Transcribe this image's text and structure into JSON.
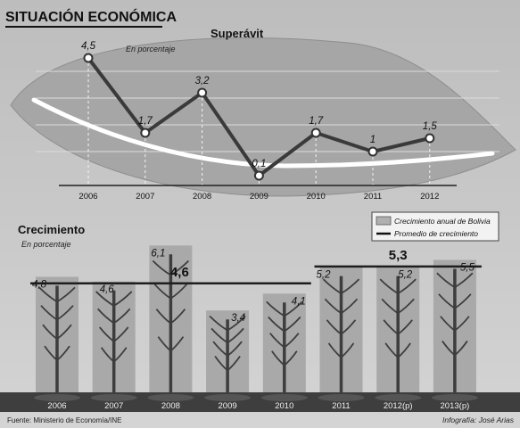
{
  "header": {
    "title": "SITUACIÓN ECONÓMICA"
  },
  "chart_data": [
    {
      "type": "line",
      "title": "Superávit",
      "subtitle": "En porcentaje",
      "x": [
        "2006",
        "2007",
        "2008",
        "2009",
        "2010",
        "2011",
        "2012"
      ],
      "series": [
        {
          "values": [
            4.5,
            1.7,
            3.2,
            0.1,
            1.7,
            1,
            1.5
          ]
        }
      ],
      "value_labels": [
        "4,5",
        "1,7",
        "3,2",
        "0,1",
        "1,7",
        "1",
        "1,5"
      ],
      "ylim": [
        0,
        5
      ],
      "grid": true,
      "trend_curve": true,
      "colors": {
        "line": "#3a3a3a",
        "marker": "#ffffff",
        "trend": "#ffffff",
        "leaf": "#a6a6a6"
      }
    },
    {
      "type": "bar",
      "title": "Crecimiento",
      "subtitle": "En porcentaje",
      "categories": [
        "2006",
        "2007",
        "2008",
        "2009",
        "2010",
        "2011",
        "2012(p)",
        "2013(p)"
      ],
      "series": [
        {
          "name": "Crecimiento anual de Bolivia",
          "values": [
            4.8,
            4.6,
            6.1,
            3.4,
            4.1,
            5.2,
            5.2,
            5.5
          ]
        }
      ],
      "value_labels": [
        "4,8",
        "4,6",
        "6,1",
        "3,4",
        "4,1",
        "5,2",
        "5,2",
        "5,5"
      ],
      "averages": [
        {
          "name": "Promedio de crecimiento",
          "label": "4,6",
          "value": 4.6,
          "from": "2006",
          "to": "2010"
        },
        {
          "name": "Promedio de crecimiento",
          "label": "5,3",
          "value": 5.3,
          "from": "2011",
          "to": "2013(p)"
        }
      ],
      "ylim": [
        0,
        6.5
      ],
      "legend": "top-right",
      "colors": {
        "column": "#a9a9a9",
        "tree": "#3d3d3d",
        "average": "#1e1e1e"
      }
    }
  ],
  "footer": {
    "source": "Fuente: Ministerio de Economía/INE",
    "credit": "Infografía: José Arias"
  }
}
